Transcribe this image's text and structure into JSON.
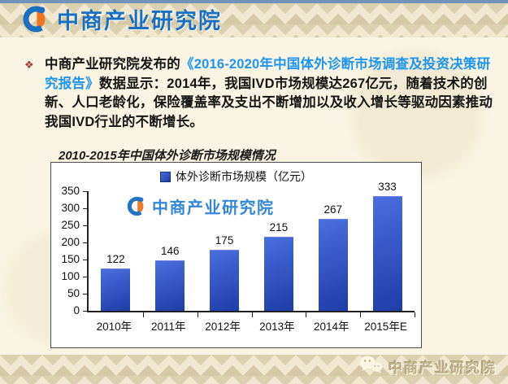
{
  "header": {
    "brand": "中商产业研究院"
  },
  "paragraph": {
    "bullet": "❖",
    "before": "中商产业研究院发布的",
    "report_title": "《2016-2020年中国体外诊断市场调查及投资决策研究报告》",
    "after": "数据显示：2014年，我国IVD市场规模达267亿元，随着技术的创新、人口老龄化，保险覆盖率及支出不断增加以及收入增长等驱动因素推动我国IVD行业的不断增长。"
  },
  "chart_data": {
    "type": "bar",
    "title": "2010-2015年中国体外诊断市场规模情况",
    "legend": "体外诊断市场规模（亿元）",
    "categories": [
      "2010年",
      "2011年",
      "2012年",
      "2013年",
      "2014年",
      "2015年E"
    ],
    "values": [
      122,
      146,
      175,
      215,
      267,
      333
    ],
    "ylim": [
      0,
      350
    ],
    "yticks": [
      0,
      50,
      100,
      150,
      200,
      250,
      300,
      350
    ],
    "grid": false,
    "legend_position": "top",
    "watermark": "中商产业研究院",
    "bar_gradient_top": "#4b6ede",
    "bar_gradient_bottom": "#1d3da8"
  },
  "footer": {
    "brand": "中商产业研究院"
  },
  "colors": {
    "brand_blue": "#1b6fc0",
    "brand_orange": "#f07522",
    "link_blue": "#1e96ee",
    "bullet_red": "#a03c30",
    "band_tan": "#dcd1af"
  }
}
